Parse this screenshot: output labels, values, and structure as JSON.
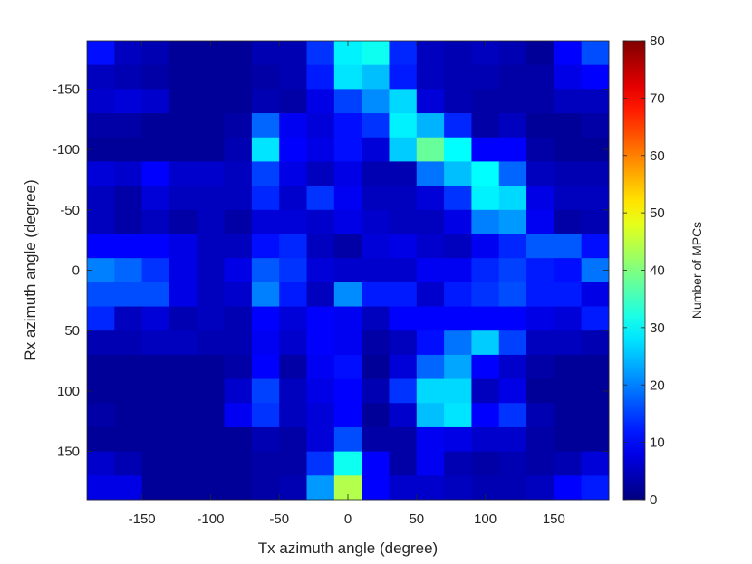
{
  "chart_data": {
    "type": "heatmap",
    "title": "",
    "xlabel": "Tx azimuth angle (degree)",
    "ylabel": "Rx azimuth angle (degree)",
    "colorbar_label": "Number of MPCs",
    "colormap": "jet",
    "x_range": [
      -190,
      190
    ],
    "y_range": [
      -190,
      190
    ],
    "y_reversed": true,
    "bin_width": 20,
    "color_range": [
      0,
      80
    ],
    "x_ticks": [
      "-150",
      "-100",
      "-50",
      "0",
      "50",
      "100",
      "150"
    ],
    "y_ticks": [
      "-150",
      "-100",
      "-50",
      "0",
      "50",
      "100",
      "150"
    ],
    "colorbar_ticks": [
      "0",
      "10",
      "20",
      "30",
      "40",
      "50",
      "60",
      "70",
      "80"
    ],
    "x_centers": [
      -180,
      -160,
      -140,
      -120,
      -100,
      -80,
      -60,
      -40,
      -20,
      0,
      20,
      40,
      60,
      80,
      100,
      120,
      140,
      160,
      180
    ],
    "y_centers": [
      -180,
      -160,
      -140,
      -120,
      -100,
      -80,
      -60,
      -40,
      -20,
      0,
      20,
      40,
      60,
      80,
      100,
      120,
      140,
      160,
      180
    ],
    "values": [
      [
        11,
        5,
        4,
        2,
        2,
        2,
        4,
        4,
        14,
        29,
        31,
        13,
        5,
        4,
        5,
        4,
        2,
        10,
        16
      ],
      [
        5,
        4,
        3,
        2,
        2,
        2,
        3,
        4,
        12,
        28,
        25,
        12,
        5,
        4,
        4,
        3,
        3,
        8,
        10
      ],
      [
        6,
        7,
        6,
        2,
        2,
        2,
        4,
        3,
        8,
        15,
        21,
        27,
        7,
        4,
        3,
        3,
        3,
        5,
        5
      ],
      [
        3,
        3,
        2,
        2,
        2,
        3,
        18,
        9,
        7,
        11,
        14,
        29,
        24,
        13,
        3,
        5,
        2,
        2,
        3
      ],
      [
        2,
        2,
        2,
        2,
        2,
        4,
        28,
        10,
        8,
        11,
        7,
        26,
        38,
        30,
        10,
        10,
        3,
        2,
        2
      ],
      [
        7,
        6,
        10,
        6,
        6,
        5,
        15,
        8,
        5,
        8,
        4,
        4,
        19,
        25,
        30,
        18,
        5,
        4,
        4
      ],
      [
        5,
        3,
        7,
        5,
        5,
        5,
        13,
        6,
        14,
        9,
        5,
        5,
        7,
        14,
        29,
        27,
        8,
        5,
        5
      ],
      [
        5,
        3,
        5,
        3,
        5,
        3,
        7,
        7,
        6,
        8,
        6,
        5,
        5,
        8,
        20,
        22,
        9,
        3,
        4
      ],
      [
        10,
        10,
        10,
        8,
        5,
        5,
        11,
        13,
        5,
        3,
        7,
        8,
        6,
        5,
        9,
        13,
        17,
        17,
        11
      ],
      [
        20,
        18,
        14,
        8,
        5,
        8,
        17,
        14,
        7,
        6,
        6,
        6,
        9,
        9,
        13,
        15,
        12,
        11,
        19
      ],
      [
        16,
        16,
        16,
        8,
        5,
        6,
        20,
        12,
        5,
        21,
        12,
        12,
        6,
        12,
        14,
        16,
        12,
        12,
        8
      ],
      [
        13,
        5,
        7,
        4,
        5,
        4,
        10,
        7,
        10,
        9,
        5,
        10,
        10,
        10,
        10,
        10,
        8,
        7,
        12
      ],
      [
        4,
        4,
        5,
        5,
        4,
        4,
        9,
        6,
        10,
        9,
        3,
        5,
        11,
        19,
        26,
        15,
        5,
        5,
        4
      ],
      [
        2,
        2,
        2,
        2,
        2,
        3,
        10,
        3,
        9,
        11,
        2,
        7,
        18,
        23,
        10,
        6,
        3,
        2,
        2
      ],
      [
        2,
        2,
        2,
        2,
        2,
        6,
        15,
        5,
        8,
        10,
        4,
        14,
        27,
        27,
        5,
        8,
        2,
        2,
        2
      ],
      [
        3,
        2,
        2,
        2,
        2,
        9,
        14,
        5,
        7,
        10,
        2,
        6,
        25,
        28,
        10,
        14,
        4,
        2,
        2
      ],
      [
        2,
        2,
        2,
        2,
        2,
        2,
        4,
        3,
        7,
        16,
        3,
        3,
        9,
        8,
        6,
        6,
        3,
        2,
        2
      ],
      [
        6,
        4,
        2,
        2,
        2,
        2,
        3,
        3,
        14,
        31,
        10,
        3,
        9,
        4,
        3,
        4,
        3,
        4,
        7
      ],
      [
        8,
        8,
        2,
        2,
        2,
        2,
        3,
        4,
        22,
        44,
        10,
        6,
        6,
        5,
        4,
        4,
        5,
        10,
        12
      ]
    ]
  }
}
